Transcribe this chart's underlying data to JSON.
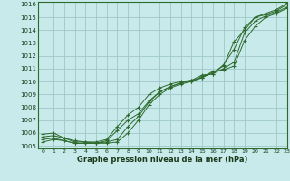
{
  "title": "Graphe pression niveau de la mer (hPa)",
  "background_color": "#c8eaea",
  "grid_color": "#a0c8c8",
  "line_color": "#2d6a2d",
  "xlim": [
    -0.5,
    23
  ],
  "ylim": [
    1004.8,
    1016.2
  ],
  "xticks": [
    0,
    1,
    2,
    3,
    4,
    5,
    6,
    7,
    8,
    9,
    10,
    11,
    12,
    13,
    14,
    15,
    16,
    17,
    18,
    19,
    20,
    21,
    22,
    23
  ],
  "yticks": [
    1005,
    1006,
    1007,
    1008,
    1009,
    1010,
    1011,
    1012,
    1013,
    1014,
    1015,
    1016
  ],
  "series": [
    [
      1005.3,
      1005.5,
      1005.4,
      1005.2,
      1005.2,
      1005.2,
      1005.2,
      1005.3,
      1006.0,
      1007.0,
      1008.2,
      1009.0,
      1009.5,
      1009.8,
      1010.0,
      1010.3,
      1010.7,
      1011.2,
      1013.1,
      1014.0,
      1015.0,
      1015.2,
      1015.5,
      1016.0
    ],
    [
      1005.5,
      1005.6,
      1005.4,
      1005.2,
      1005.2,
      1005.2,
      1005.3,
      1005.5,
      1006.5,
      1007.3,
      1008.4,
      1009.2,
      1009.6,
      1009.9,
      1010.1,
      1010.3,
      1010.8,
      1010.9,
      1011.2,
      1013.2,
      1014.3,
      1015.0,
      1015.3,
      1015.7
    ],
    [
      1005.7,
      1005.8,
      1005.6,
      1005.3,
      1005.3,
      1005.2,
      1005.4,
      1006.2,
      1007.0,
      1007.5,
      1008.5,
      1009.2,
      1009.6,
      1009.9,
      1010.0,
      1010.4,
      1010.6,
      1011.0,
      1011.5,
      1013.8,
      1014.7,
      1015.1,
      1015.4,
      1015.8
    ],
    [
      1005.9,
      1006.0,
      1005.6,
      1005.4,
      1005.3,
      1005.3,
      1005.5,
      1006.5,
      1007.4,
      1008.0,
      1009.0,
      1009.5,
      1009.8,
      1010.0,
      1010.1,
      1010.5,
      1010.6,
      1011.3,
      1012.5,
      1014.2,
      1015.0,
      1015.3,
      1015.6,
      1016.1
    ]
  ]
}
